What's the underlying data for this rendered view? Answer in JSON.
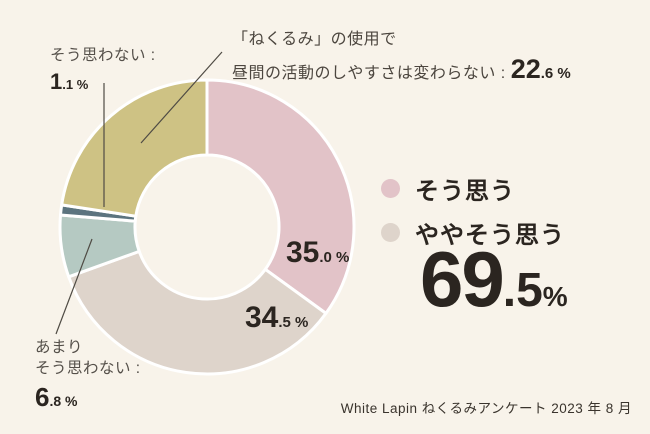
{
  "background": "#f8f3ea",
  "chart_data": {
    "type": "pie",
    "subtype": "donut",
    "start_angle_deg": 0,
    "clockwise": true,
    "inner_radius_ratio": 0.49,
    "gap_color": "#ffffff",
    "segments": [
      {
        "label": "そう思う",
        "value": 35.0,
        "color": "#e2c3c8"
      },
      {
        "label": "ややそう思う",
        "value": 34.5,
        "color": "#ded4cb"
      },
      {
        "label": "あまりそう思わない",
        "value": 6.8,
        "color": "#b5c9c2"
      },
      {
        "label": "そう思わない",
        "value": 1.1,
        "color": "#5c747f"
      },
      {
        "label": "「ねくるみ」の使用で昼間の活動のしやすさは変わらない",
        "value": 22.6,
        "color": "#cec284"
      }
    ],
    "combined_total": {
      "labels": [
        "そう思う",
        "ややそう思う"
      ],
      "value": 69.5
    }
  },
  "annotation_kawaranai": {
    "line1": "「ねくるみ」の使用で",
    "line2": "昼間の活動のしやすさは変わらない : ",
    "num_big": "22",
    "num_small": ".6 %"
  },
  "label_omowanai": {
    "line1": "そう思わない :",
    "num_big": "1",
    "num_small": ".1 %"
  },
  "label_amari": {
    "line1": "あまり",
    "line2": "そう思わない :",
    "num_big": "6",
    "num_small": ".8 %"
  },
  "pct_souomou": {
    "big": "35",
    "small": ".0 %"
  },
  "pct_yaya": {
    "big": "34",
    "small": ".5 %"
  },
  "legend": {
    "items": [
      {
        "label": "そう思う",
        "color": "#e2c3c8"
      },
      {
        "label": "ややそう思う",
        "color": "#ded4cb"
      }
    ],
    "total_big": "69",
    "total_mid": ".5",
    "total_unit": "%"
  },
  "footer": {
    "text": "White Lapin ねくるみアンケート 2023 年 8 月"
  }
}
